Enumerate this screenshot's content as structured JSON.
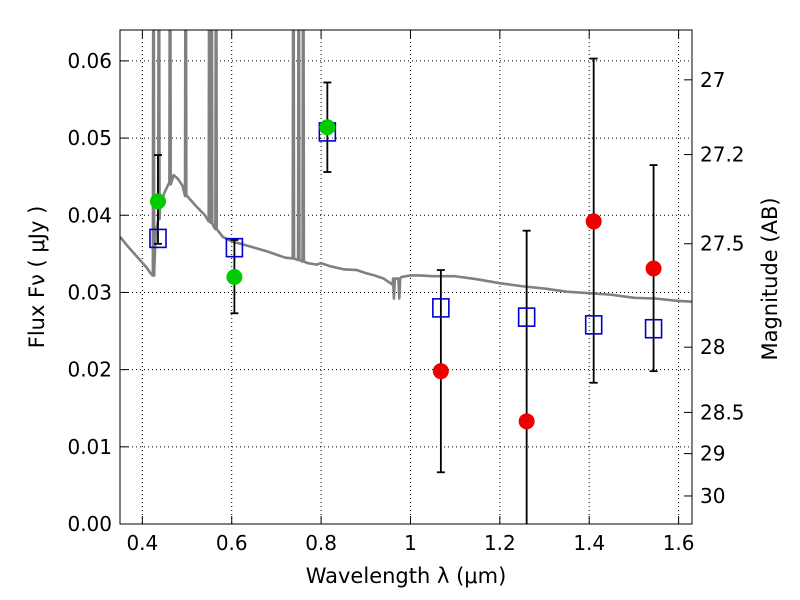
{
  "chart_data": {
    "type": "scatter",
    "xlabel": "Wavelength  λ (μm)",
    "ylabel": "Flux  Fν  ( μJy )",
    "ylabel_right": "Magnitude (AB)",
    "xlim": [
      0.35,
      1.63
    ],
    "ylim": [
      0.0,
      0.064
    ],
    "grid": true,
    "x_ticks": [
      {
        "value": 0.4,
        "label": "0.4"
      },
      {
        "value": 0.6,
        "label": "0.6"
      },
      {
        "value": 0.8,
        "label": "0.8"
      },
      {
        "value": 1.0,
        "label": "1"
      },
      {
        "value": 1.2,
        "label": "1.2"
      },
      {
        "value": 1.4,
        "label": "1.4"
      },
      {
        "value": 1.6,
        "label": "1.6"
      }
    ],
    "y_ticks": [
      {
        "value": 0.0,
        "label": "0.00"
      },
      {
        "value": 0.01,
        "label": "0.01"
      },
      {
        "value": 0.02,
        "label": "0.02"
      },
      {
        "value": 0.03,
        "label": "0.03"
      },
      {
        "value": 0.04,
        "label": "0.04"
      },
      {
        "value": 0.05,
        "label": "0.05"
      },
      {
        "value": 0.06,
        "label": "0.06"
      }
    ],
    "right_ticks": [
      {
        "value": 27,
        "label": "27"
      },
      {
        "value": 27.2,
        "label": "27.2"
      },
      {
        "value": 27.5,
        "label": "27.5"
      },
      {
        "value": 28,
        "label": "28"
      },
      {
        "value": 28.5,
        "label": "28.5"
      },
      {
        "value": 29,
        "label": "29"
      },
      {
        "value": 30,
        "label": "30"
      }
    ],
    "series": [
      {
        "marker": "square-open",
        "color": "#0000cc",
        "points": [
          {
            "x": 0.435,
            "y": 0.037
          },
          {
            "x": 0.606,
            "y": 0.0358
          },
          {
            "x": 0.814,
            "y": 0.0508
          },
          {
            "x": 1.068,
            "y": 0.028
          },
          {
            "x": 1.26,
            "y": 0.0268
          },
          {
            "x": 1.41,
            "y": 0.0258
          },
          {
            "x": 1.544,
            "y": 0.0253
          }
        ]
      },
      {
        "marker": "circle",
        "color": "#00cc00",
        "points": [
          {
            "x": 0.435,
            "y": 0.0418,
            "yerr_low": 0.0363,
            "yerr_high": 0.0478
          },
          {
            "x": 0.606,
            "y": 0.032,
            "yerr_low": 0.0273,
            "yerr_high": 0.0368
          },
          {
            "x": 0.814,
            "y": 0.0514,
            "yerr_low": 0.0456,
            "yerr_high": 0.0572
          }
        ]
      },
      {
        "marker": "circle",
        "color": "#ee0000",
        "points": [
          {
            "x": 1.068,
            "y": 0.0198,
            "yerr_low": 0.0067,
            "yerr_high": 0.0329
          },
          {
            "x": 1.26,
            "y": 0.0133,
            "yerr_low": 0.0,
            "yerr_high": 0.038
          },
          {
            "x": 1.41,
            "y": 0.0392,
            "yerr_low": 0.0183,
            "yerr_high": 0.0603
          },
          {
            "x": 1.544,
            "y": 0.0331,
            "yerr_low": 0.0198,
            "yerr_high": 0.0465
          }
        ]
      }
    ],
    "model_spectrum": {
      "color": "#808080",
      "points": [
        [
          0.35,
          0.0372
        ],
        [
          0.37,
          0.0358
        ],
        [
          0.39,
          0.0345
        ],
        [
          0.41,
          0.0332
        ],
        [
          0.418,
          0.0325
        ],
        [
          0.423,
          0.0322
        ],
        [
          0.427,
          0.0335
        ],
        [
          0.43,
          0.0375
        ],
        [
          0.44,
          0.0415
        ],
        [
          0.45,
          0.043
        ],
        [
          0.46,
          0.0442
        ],
        [
          0.47,
          0.0452
        ],
        [
          0.48,
          0.0447
        ],
        [
          0.49,
          0.0438
        ],
        [
          0.5,
          0.0425
        ],
        [
          0.52,
          0.0412
        ],
        [
          0.54,
          0.04
        ],
        [
          0.56,
          0.0385
        ],
        [
          0.58,
          0.0372
        ],
        [
          0.6,
          0.0366
        ],
        [
          0.62,
          0.0363
        ],
        [
          0.65,
          0.0358
        ],
        [
          0.68,
          0.0353
        ],
        [
          0.7,
          0.0349
        ],
        [
          0.72,
          0.0345
        ],
        [
          0.75,
          0.0342
        ],
        [
          0.77,
          0.0338
        ],
        [
          0.79,
          0.0336
        ],
        [
          0.8,
          0.0338
        ],
        [
          0.82,
          0.0334
        ],
        [
          0.85,
          0.033
        ],
        [
          0.88,
          0.0329
        ],
        [
          0.9,
          0.0325
        ],
        [
          0.92,
          0.0322
        ],
        [
          0.94,
          0.0318
        ],
        [
          0.96,
          0.031
        ],
        [
          0.97,
          0.0318
        ],
        [
          0.98,
          0.032
        ],
        [
          1.0,
          0.0322
        ],
        [
          1.02,
          0.0322
        ],
        [
          1.05,
          0.0321
        ],
        [
          1.1,
          0.0321
        ],
        [
          1.15,
          0.0317
        ],
        [
          1.2,
          0.0312
        ],
        [
          1.25,
          0.0308
        ],
        [
          1.3,
          0.0305
        ],
        [
          1.35,
          0.0301
        ],
        [
          1.4,
          0.0299
        ],
        [
          1.45,
          0.0297
        ],
        [
          1.5,
          0.0293
        ],
        [
          1.55,
          0.0292
        ],
        [
          1.6,
          0.0289
        ],
        [
          1.63,
          0.0288
        ]
      ],
      "emission_spikes": [
        {
          "x": 0.425,
          "base": 0.0322
        },
        {
          "x": 0.437,
          "base": 0.0395
        },
        {
          "x": 0.462,
          "base": 0.044
        },
        {
          "x": 0.497,
          "base": 0.0425
        },
        {
          "x": 0.55,
          "base": 0.0392
        },
        {
          "x": 0.555,
          "base": 0.039
        },
        {
          "x": 0.565,
          "base": 0.0382
        },
        {
          "x": 0.738,
          "base": 0.0344
        },
        {
          "x": 0.75,
          "base": 0.0342
        },
        {
          "x": 0.76,
          "base": 0.034
        }
      ],
      "absorption_dips": [
        {
          "x": 0.963,
          "bottom": 0.0292
        },
        {
          "x": 0.975,
          "bottom": 0.0292
        }
      ]
    }
  }
}
